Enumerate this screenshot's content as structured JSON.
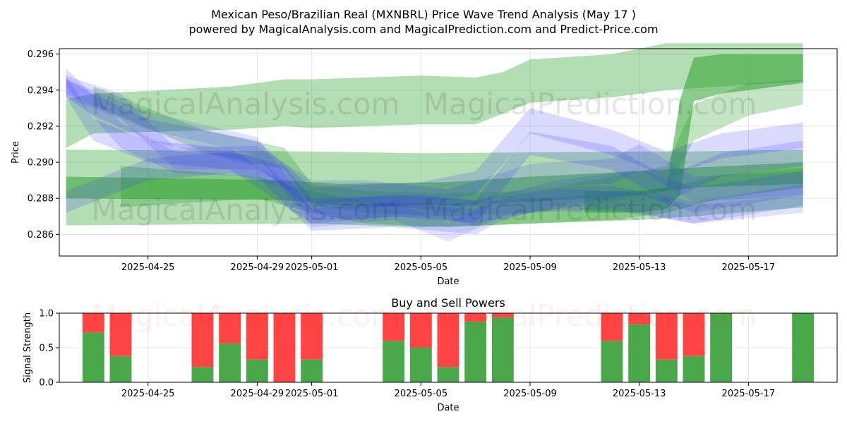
{
  "header": {
    "title": "Mexican Peso/Brazilian Real (MXNBRL) Price Wave Trend Analysis (May 17 )",
    "subtitle": "powered by MagicalAnalysis.com and MagicalPrediction.com and Predict-Price.com"
  },
  "watermark": {
    "left": "MagicalAnalysis.com",
    "right": "MagicalPrediction.com"
  },
  "colors": {
    "green": "#2ca02c",
    "blue": "#3333ff",
    "buy": "#4aa84a",
    "sell": "#ff4444",
    "grid": "#e6e6e6"
  },
  "chart_data": [
    {
      "type": "area",
      "name": "price-wave",
      "title": "",
      "xlabel": "Date",
      "ylabel": "Price",
      "x_tick_labels": [
        "2025-04-25",
        "2025-04-29",
        "2025-05-01",
        "2025-05-05",
        "2025-05-09",
        "2025-05-13",
        "2025-05-17"
      ],
      "x_range": [
        "2025-04-21T18:00",
        "2025-05-20T06:00"
      ],
      "y_ticks": [
        0.286,
        0.288,
        0.29,
        0.292,
        0.294,
        0.296
      ],
      "y_tick_labels": [
        "0.286",
        "0.288",
        "0.290",
        "0.292",
        "0.294",
        "0.296"
      ],
      "ylim": [
        0.2848,
        0.2963
      ],
      "grid": true,
      "green_bands": [
        {
          "x": [
            "2025-04-22",
            "2025-04-23",
            "2025-04-28",
            "2025-04-30",
            "2025-05-01",
            "2025-05-05",
            "2025-05-07",
            "2025-05-08",
            "2025-05-09",
            "2025-05-12",
            "2025-05-14",
            "2025-05-15",
            "2025-05-16",
            "2025-05-19"
          ],
          "lower": [
            0.2908,
            0.2916,
            0.2918,
            0.292,
            0.2919,
            0.2921,
            0.2921,
            0.2927,
            0.2933,
            0.2936,
            0.294,
            0.2941,
            0.2942,
            0.2945
          ],
          "upper": [
            0.2935,
            0.2938,
            0.2942,
            0.2946,
            0.2946,
            0.2948,
            0.2947,
            0.295,
            0.2957,
            0.296,
            0.2966,
            0.2966,
            0.2966,
            0.2966
          ],
          "opacity": 0.36
        },
        {
          "x": [
            "2025-04-22",
            "2025-05-01",
            "2025-05-05",
            "2025-05-13",
            "2025-05-15",
            "2025-05-19"
          ],
          "lower": [
            0.2865,
            0.2866,
            0.2864,
            0.2868,
            0.287,
            0.2875
          ],
          "upper": [
            0.2907,
            0.2906,
            0.2905,
            0.2906,
            0.2906,
            0.2907
          ],
          "opacity": 0.36
        },
        {
          "x": [
            "2025-04-22",
            "2025-04-30",
            "2025-05-02",
            "2025-05-06",
            "2025-05-09",
            "2025-05-13",
            "2025-05-15",
            "2025-05-19"
          ],
          "lower": [
            0.288,
            0.2879,
            0.2876,
            0.2876,
            0.2878,
            0.2882,
            0.2886,
            0.2888
          ],
          "upper": [
            0.2892,
            0.289,
            0.2888,
            0.2889,
            0.2892,
            0.2895,
            0.2897,
            0.29
          ],
          "opacity": 0.5
        },
        {
          "x": [
            "2025-04-24",
            "2025-04-29",
            "2025-05-01",
            "2025-05-03",
            "2025-05-06",
            "2025-05-09",
            "2025-05-12",
            "2025-05-14",
            "2025-05-16",
            "2025-05-19"
          ],
          "lower": [
            0.2875,
            0.288,
            0.2872,
            0.2866,
            0.2864,
            0.2866,
            0.2868,
            0.2872,
            0.288,
            0.2886
          ],
          "upper": [
            0.2898,
            0.2892,
            0.2884,
            0.2878,
            0.2877,
            0.288,
            0.2882,
            0.2886,
            0.2893,
            0.2897
          ],
          "opacity": 0.32
        },
        {
          "x": [
            "2025-04-23",
            "2025-04-27",
            "2025-04-30",
            "2025-05-01",
            "2025-05-03",
            "2025-05-06",
            "2025-05-09",
            "2025-05-12",
            "2025-05-14",
            "2025-05-15",
            "2025-05-17",
            "2025-05-19"
          ],
          "lower": [
            0.2932,
            0.2906,
            0.2896,
            0.2876,
            0.2872,
            0.287,
            0.2872,
            0.2878,
            0.2884,
            0.2912,
            0.2926,
            0.2932
          ],
          "upper": [
            0.2942,
            0.2918,
            0.2908,
            0.2888,
            0.2884,
            0.2883,
            0.2884,
            0.2892,
            0.2898,
            0.2932,
            0.2944,
            0.2946
          ],
          "opacity": 0.28
        },
        {
          "x": [
            "2025-05-11",
            "2025-05-13",
            "2025-05-14",
            "2025-05-14T12:00",
            "2025-05-15",
            "2025-05-16",
            "2025-05-19"
          ],
          "lower": [
            0.2872,
            0.2872,
            0.2874,
            0.2882,
            0.2934,
            0.2938,
            0.2944
          ],
          "upper": [
            0.2884,
            0.2884,
            0.2886,
            0.2935,
            0.2958,
            0.296,
            0.296
          ],
          "opacity": 0.55
        }
      ],
      "blue_bands": [
        {
          "x": [
            "2025-04-22",
            "2025-04-23",
            "2025-04-25",
            "2025-04-29",
            "2025-05-01",
            "2025-05-05",
            "2025-05-07",
            "2025-05-09",
            "2025-05-12",
            "2025-05-14",
            "2025-05-16",
            "2025-05-19"
          ],
          "lower": [
            0.2936,
            0.2926,
            0.2912,
            0.2898,
            0.2874,
            0.2876,
            0.2882,
            0.2916,
            0.2904,
            0.2892,
            0.2902,
            0.2908
          ],
          "upper": [
            0.2946,
            0.2938,
            0.2924,
            0.2912,
            0.2886,
            0.2889,
            0.2895,
            0.293,
            0.2918,
            0.2906,
            0.2916,
            0.2922
          ],
          "opacity": 0.18
        },
        {
          "x": [
            "2025-04-22",
            "2025-04-23",
            "2025-04-25",
            "2025-04-28",
            "2025-05-01",
            "2025-05-04",
            "2025-05-07",
            "2025-05-09",
            "2025-05-12",
            "2025-05-14",
            "2025-05-16",
            "2025-05-19"
          ],
          "lower": [
            0.2936,
            0.2912,
            0.29,
            0.2896,
            0.2866,
            0.287,
            0.2866,
            0.2904,
            0.2896,
            0.2878,
            0.2892,
            0.2898
          ],
          "upper": [
            0.2948,
            0.2924,
            0.2912,
            0.2908,
            0.2878,
            0.2882,
            0.2879,
            0.2917,
            0.2909,
            0.2892,
            0.2905,
            0.2912
          ],
          "opacity": 0.18
        },
        {
          "x": [
            "2025-04-22",
            "2025-04-24",
            "2025-04-26",
            "2025-04-29",
            "2025-05-01",
            "2025-05-04",
            "2025-05-07",
            "2025-05-08",
            "2025-05-10",
            "2025-05-13",
            "2025-05-15",
            "2025-05-19"
          ],
          "lower": [
            0.2942,
            0.2908,
            0.2894,
            0.2892,
            0.2862,
            0.2864,
            0.286,
            0.2868,
            0.2876,
            0.2882,
            0.2872,
            0.2882
          ],
          "upper": [
            0.2952,
            0.2922,
            0.2906,
            0.2904,
            0.2874,
            0.2877,
            0.2874,
            0.2882,
            0.289,
            0.2896,
            0.2886,
            0.2895
          ],
          "opacity": 0.16
        },
        {
          "x": [
            "2025-04-22",
            "2025-04-25",
            "2025-04-28",
            "2025-04-30",
            "2025-05-01",
            "2025-05-05",
            "2025-05-07",
            "2025-05-09",
            "2025-05-12",
            "2025-05-15",
            "2025-05-19"
          ],
          "lower": [
            0.2872,
            0.289,
            0.2894,
            0.2886,
            0.2868,
            0.287,
            0.2866,
            0.2872,
            0.2874,
            0.2866,
            0.2876
          ],
          "upper": [
            0.2884,
            0.2902,
            0.2906,
            0.2898,
            0.288,
            0.2882,
            0.2879,
            0.2886,
            0.2887,
            0.2878,
            0.2888
          ],
          "opacity": 0.18
        },
        {
          "x": [
            "2025-04-22",
            "2025-04-24",
            "2025-04-26",
            "2025-04-29",
            "2025-05-01",
            "2025-05-03",
            "2025-05-06",
            "2025-05-09",
            "2025-05-12",
            "2025-05-13",
            "2025-05-15",
            "2025-05-19"
          ],
          "lower": [
            0.2936,
            0.2924,
            0.2896,
            0.2896,
            0.2878,
            0.2878,
            0.2872,
            0.2886,
            0.2888,
            0.2896,
            0.2878,
            0.2882
          ],
          "upper": [
            0.2948,
            0.2938,
            0.2908,
            0.2909,
            0.289,
            0.289,
            0.2885,
            0.2899,
            0.2902,
            0.291,
            0.2892,
            0.2895
          ],
          "opacity": 0.16
        },
        {
          "x": [
            "2025-04-22",
            "2025-04-25",
            "2025-04-29",
            "2025-05-01",
            "2025-05-04",
            "2025-05-06",
            "2025-05-08",
            "2025-05-10",
            "2025-05-13",
            "2025-05-15",
            "2025-05-19"
          ],
          "lower": [
            0.2938,
            0.2918,
            0.2904,
            0.2864,
            0.2868,
            0.2856,
            0.287,
            0.2874,
            0.2872,
            0.2866,
            0.2872
          ],
          "upper": [
            0.2946,
            0.2928,
            0.2914,
            0.2874,
            0.2878,
            0.2866,
            0.2881,
            0.2885,
            0.2883,
            0.2876,
            0.2882
          ],
          "opacity": 0.14
        }
      ]
    },
    {
      "type": "bar",
      "name": "buy-sell-powers",
      "title": "Buy and Sell Powers",
      "xlabel": "Date",
      "ylabel": "Signal Strength",
      "x_tick_labels": [
        "2025-04-25",
        "2025-04-29",
        "2025-05-01",
        "2025-05-05",
        "2025-05-09",
        "2025-05-13",
        "2025-05-17"
      ],
      "x_range": [
        "2025-04-21T18:00",
        "2025-05-20T06:00"
      ],
      "y_ticks": [
        0.0,
        0.5,
        1.0
      ],
      "y_tick_labels": [
        "0.0",
        "0.5",
        "1.0"
      ],
      "ylim": [
        0,
        1
      ],
      "grid": true,
      "categories": [
        "2025-04-23",
        "2025-04-24",
        "2025-04-27",
        "2025-04-28",
        "2025-04-29",
        "2025-04-30",
        "2025-05-01",
        "2025-05-04",
        "2025-05-05",
        "2025-05-06",
        "2025-05-07",
        "2025-05-08",
        "2025-05-12",
        "2025-05-13",
        "2025-05-14",
        "2025-05-15",
        "2025-05-16",
        "2025-05-19"
      ],
      "series": [
        {
          "name": "",
          "values": [
            0.72,
            0.38,
            0.22,
            0.56,
            0.33,
            0.0,
            0.33,
            0.6,
            0.5,
            0.22,
            0.88,
            0.94,
            0.6,
            0.84,
            0.33,
            0.38,
            1.0,
            1.0
          ]
        },
        {
          "name": "",
          "values": [
            0.28,
            0.62,
            0.78,
            0.44,
            0.67,
            1.0,
            0.67,
            0.4,
            0.5,
            0.78,
            0.12,
            0.06,
            0.4,
            0.16,
            0.67,
            0.62,
            0.0,
            0.0
          ]
        }
      ]
    }
  ]
}
